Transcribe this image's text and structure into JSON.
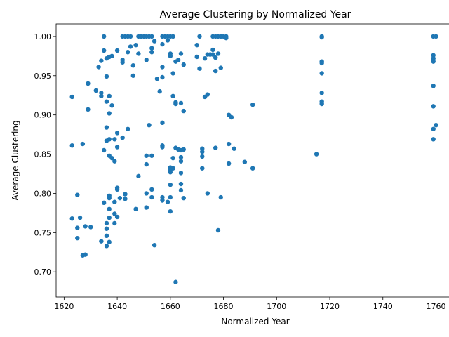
{
  "chart_data": {
    "type": "scatter",
    "title": "Average Clustering by Normalized Year",
    "xlabel": "Normalized Year",
    "ylabel": "Average Clustering",
    "xlim": [
      1617,
      1767
    ],
    "ylim": [
      0.668,
      1.016
    ],
    "xticks": [
      1620,
      1640,
      1660,
      1680,
      1700,
      1720,
      1740,
      1760
    ],
    "yticks": [
      0.7,
      0.75,
      0.8,
      0.85,
      0.9,
      0.95,
      1.0
    ],
    "ytick_labels": [
      "0.70",
      "0.75",
      "0.80",
      "0.85",
      "0.90",
      "0.95",
      "1.00"
    ],
    "grid": false,
    "point_color": "#1f77b4",
    "points": [
      [
        1623,
        0.923
      ],
      [
        1623,
        0.861
      ],
      [
        1623,
        0.768
      ],
      [
        1625,
        0.798
      ],
      [
        1625,
        0.756
      ],
      [
        1625,
        0.743
      ],
      [
        1626,
        0.769
      ],
      [
        1627,
        0.863
      ],
      [
        1627,
        0.721
      ],
      [
        1628,
        0.722
      ],
      [
        1628,
        0.758
      ],
      [
        1629,
        0.94
      ],
      [
        1629,
        0.907
      ],
      [
        1630,
        0.757
      ],
      [
        1632,
        0.931
      ],
      [
        1633,
        0.961
      ],
      [
        1634,
        0.969
      ],
      [
        1634,
        0.928
      ],
      [
        1634,
        0.924
      ],
      [
        1634,
        0.739
      ],
      [
        1635,
        1.0
      ],
      [
        1635,
        0.982
      ],
      [
        1635,
        0.855
      ],
      [
        1635,
        0.788
      ],
      [
        1636,
        0.972
      ],
      [
        1636,
        0.949
      ],
      [
        1636,
        0.917
      ],
      [
        1636,
        0.884
      ],
      [
        1636,
        0.867
      ],
      [
        1636,
        0.762
      ],
      [
        1636,
        0.755
      ],
      [
        1636,
        0.746
      ],
      [
        1636,
        0.733
      ],
      [
        1637,
        0.974
      ],
      [
        1637,
        0.924
      ],
      [
        1637,
        0.902
      ],
      [
        1637,
        0.869
      ],
      [
        1637,
        0.848
      ],
      [
        1637,
        0.797
      ],
      [
        1637,
        0.794
      ],
      [
        1637,
        0.78
      ],
      [
        1637,
        0.769
      ],
      [
        1637,
        0.738
      ],
      [
        1638,
        0.975
      ],
      [
        1638,
        0.912
      ],
      [
        1638,
        0.845
      ],
      [
        1639,
        0.869
      ],
      [
        1639,
        0.841
      ],
      [
        1639,
        0.789
      ],
      [
        1639,
        0.774
      ],
      [
        1639,
        0.762
      ],
      [
        1640,
        0.982
      ],
      [
        1640,
        0.877
      ],
      [
        1640,
        0.859
      ],
      [
        1640,
        0.807
      ],
      [
        1640,
        0.805
      ],
      [
        1640,
        0.77
      ],
      [
        1641,
        0.794
      ],
      [
        1642,
        1.0
      ],
      [
        1642,
        0.97
      ],
      [
        1642,
        0.967
      ],
      [
        1642,
        0.871
      ],
      [
        1643,
        1.0
      ],
      [
        1643,
        0.799
      ],
      [
        1643,
        0.793
      ],
      [
        1644,
        1.0
      ],
      [
        1644,
        0.98
      ],
      [
        1644,
        0.882
      ],
      [
        1645,
        1.0
      ],
      [
        1645,
        0.987
      ],
      [
        1646,
        0.963
      ],
      [
        1646,
        0.95
      ],
      [
        1647,
        0.989
      ],
      [
        1647,
        0.78
      ],
      [
        1648,
        1.0
      ],
      [
        1648,
        0.978
      ],
      [
        1648,
        0.822
      ],
      [
        1649,
        1.0
      ],
      [
        1650,
        1.0
      ],
      [
        1651,
        1.0
      ],
      [
        1651,
        0.97
      ],
      [
        1651,
        0.848
      ],
      [
        1651,
        0.837
      ],
      [
        1651,
        0.8
      ],
      [
        1651,
        0.782
      ],
      [
        1652,
        1.0
      ],
      [
        1652,
        0.887
      ],
      [
        1653,
        1.0
      ],
      [
        1653,
        0.985
      ],
      [
        1653,
        0.98
      ],
      [
        1653,
        0.848
      ],
      [
        1653,
        0.805
      ],
      [
        1653,
        0.795
      ],
      [
        1654,
        0.994
      ],
      [
        1654,
        0.734
      ],
      [
        1655,
        0.946
      ],
      [
        1656,
        0.93
      ],
      [
        1657,
        1.0
      ],
      [
        1657,
        0.99
      ],
      [
        1657,
        0.961
      ],
      [
        1657,
        0.948
      ],
      [
        1657,
        0.89
      ],
      [
        1657,
        0.861
      ],
      [
        1657,
        0.859
      ],
      [
        1657,
        0.795
      ],
      [
        1657,
        0.791
      ],
      [
        1658,
        1.0
      ],
      [
        1659,
        1.0
      ],
      [
        1659,
        0.995
      ],
      [
        1659,
        0.789
      ],
      [
        1660,
        1.0
      ],
      [
        1660,
        0.978
      ],
      [
        1660,
        0.975
      ],
      [
        1660,
        0.833
      ],
      [
        1660,
        0.83
      ],
      [
        1660,
        0.827
      ],
      [
        1660,
        0.811
      ],
      [
        1660,
        0.795
      ],
      [
        1660,
        0.777
      ],
      [
        1661,
        1.0
      ],
      [
        1661,
        0.953
      ],
      [
        1661,
        0.924
      ],
      [
        1661,
        0.845
      ],
      [
        1661,
        0.832
      ],
      [
        1662,
        0.968
      ],
      [
        1662,
        0.916
      ],
      [
        1662,
        0.914
      ],
      [
        1662,
        0.858
      ],
      [
        1662,
        0.687
      ],
      [
        1663,
        0.97
      ],
      [
        1663,
        0.856
      ],
      [
        1664,
        0.978
      ],
      [
        1664,
        0.915
      ],
      [
        1664,
        0.855
      ],
      [
        1664,
        0.846
      ],
      [
        1664,
        0.841
      ],
      [
        1664,
        0.826
      ],
      [
        1664,
        0.812
      ],
      [
        1664,
        0.804
      ],
      [
        1665,
        0.964
      ],
      [
        1665,
        0.905
      ],
      [
        1665,
        0.856
      ],
      [
        1665,
        0.794
      ],
      [
        1670,
        0.989
      ],
      [
        1670,
        0.974
      ],
      [
        1671,
        1.0
      ],
      [
        1671,
        0.959
      ],
      [
        1672,
        0.857
      ],
      [
        1672,
        0.853
      ],
      [
        1672,
        0.847
      ],
      [
        1672,
        0.832
      ],
      [
        1673,
        0.972
      ],
      [
        1673,
        0.923
      ],
      [
        1674,
        0.977
      ],
      [
        1674,
        0.926
      ],
      [
        1674,
        0.8
      ],
      [
        1675,
        0.977
      ],
      [
        1676,
        1.0
      ],
      [
        1676,
        0.983
      ],
      [
        1676,
        0.977
      ],
      [
        1677,
        1.0
      ],
      [
        1677,
        0.973
      ],
      [
        1677,
        0.956
      ],
      [
        1677,
        0.858
      ],
      [
        1678,
        1.0
      ],
      [
        1678,
        0.978
      ],
      [
        1678,
        0.753
      ],
      [
        1679,
        1.0
      ],
      [
        1679,
        0.96
      ],
      [
        1679,
        0.795
      ],
      [
        1680,
        1.0
      ],
      [
        1681,
        1.0
      ],
      [
        1681,
        0.998
      ],
      [
        1682,
        0.9
      ],
      [
        1682,
        0.863
      ],
      [
        1682,
        0.838
      ],
      [
        1683,
        0.897
      ],
      [
        1684,
        0.857
      ],
      [
        1688,
        0.84
      ],
      [
        1691,
        0.913
      ],
      [
        1691,
        0.832
      ],
      [
        1715,
        0.85
      ],
      [
        1717,
        1.0
      ],
      [
        1717,
        0.999
      ],
      [
        1717,
        0.968
      ],
      [
        1717,
        0.966
      ],
      [
        1717,
        0.953
      ],
      [
        1717,
        0.928
      ],
      [
        1717,
        0.917
      ],
      [
        1717,
        0.914
      ],
      [
        1759,
        1.0
      ],
      [
        1759,
        0.976
      ],
      [
        1759,
        0.972
      ],
      [
        1759,
        0.968
      ],
      [
        1759,
        0.937
      ],
      [
        1759,
        0.911
      ],
      [
        1759,
        0.882
      ],
      [
        1759,
        0.869
      ],
      [
        1760,
        1.0
      ],
      [
        1760,
        0.887
      ]
    ]
  }
}
